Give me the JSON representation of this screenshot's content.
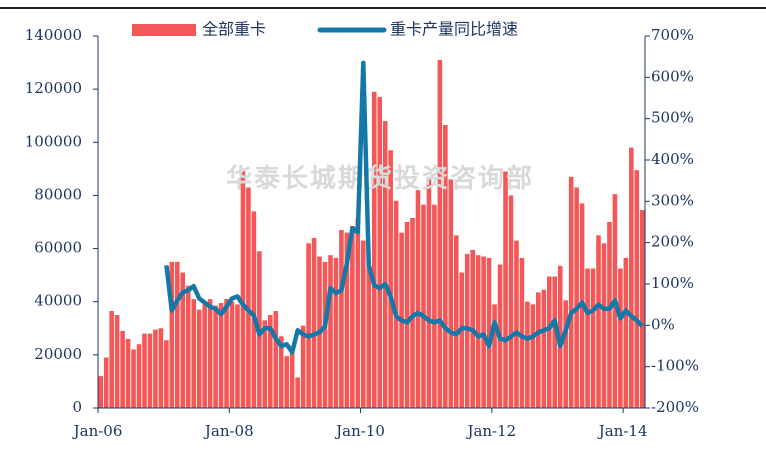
{
  "chart_data": {
    "type": "bar_line",
    "annotation": "华泰长城期货投资咨询部",
    "categories": [
      "Jan-06",
      null,
      null,
      null,
      null,
      null,
      null,
      null,
      null,
      null,
      null,
      null,
      null,
      null,
      null,
      null,
      null,
      null,
      null,
      null,
      null,
      null,
      null,
      null,
      "Jan-08",
      null,
      null,
      null,
      null,
      null,
      null,
      null,
      null,
      null,
      null,
      null,
      null,
      null,
      null,
      null,
      null,
      null,
      null,
      null,
      null,
      null,
      null,
      null,
      "Jan-10",
      null,
      null,
      null,
      null,
      null,
      null,
      null,
      null,
      null,
      null,
      null,
      null,
      null,
      null,
      null,
      null,
      null,
      null,
      null,
      null,
      null,
      null,
      null,
      "Jan-12",
      null,
      null,
      null,
      null,
      null,
      null,
      null,
      null,
      null,
      null,
      null,
      null,
      null,
      null,
      null,
      null,
      null,
      null,
      null,
      null,
      null,
      null,
      null,
      "Jan-14",
      null,
      null,
      null
    ],
    "series": [
      {
        "name": "全部重卡",
        "color": "#f45757",
        "axis": "y",
        "values": [
          12000,
          19000,
          36500,
          35000,
          29000,
          26000,
          22000,
          24000,
          28000,
          28000,
          29500,
          30000,
          25500,
          55000,
          55000,
          51000,
          46000,
          41000,
          37000,
          39000,
          41000,
          38500,
          39500,
          41000,
          40000,
          39000,
          90000,
          83000,
          74000,
          59000,
          33000,
          35000,
          36500,
          27000,
          19500,
          21000,
          11500,
          31000,
          62000,
          64000,
          57000,
          55000,
          57500,
          56500,
          67000,
          66000,
          68500,
          71500,
          63000,
          54000,
          119000,
          117000,
          108000,
          97000,
          78000,
          66000,
          70000,
          71500,
          82000,
          76500,
          86000,
          76500,
          131000,
          106500,
          86000,
          65000,
          51000,
          58000,
          59500,
          57500,
          57000,
          56500,
          39000,
          54000,
          89000,
          80000,
          63000,
          56500,
          40000,
          39000,
          43500,
          44500,
          49500,
          49500,
          53500,
          40500,
          87000,
          83000,
          77000,
          52500,
          52500,
          65000,
          62000,
          70000,
          80500,
          52500,
          56500,
          98000,
          89500,
          74500
        ]
      },
      {
        "name": "重卡产量同比增速",
        "color": "#1478a8",
        "axis": "y2",
        "values": [
          null,
          null,
          null,
          null,
          null,
          null,
          null,
          null,
          null,
          null,
          null,
          null,
          145,
          36,
          60,
          80,
          85,
          95,
          65,
          55,
          45,
          40,
          27,
          45,
          65,
          70,
          50,
          36,
          24,
          -22,
          -7,
          -7,
          -32,
          -50,
          -46,
          -65,
          -12,
          -22,
          -27,
          -22,
          -17,
          -2,
          90,
          78,
          85,
          150,
          235,
          225,
          635,
          145,
          97,
          90,
          100,
          70,
          22,
          12,
          7,
          22,
          30,
          22,
          12,
          7,
          12,
          -7,
          -17,
          -22,
          -7,
          -7,
          -12,
          -27,
          -22,
          -50,
          7,
          -32,
          -36,
          -27,
          -17,
          -27,
          -32,
          -27,
          -17,
          -12,
          -7,
          12,
          -50,
          -12,
          30,
          40,
          55,
          30,
          36,
          50,
          40,
          40,
          60,
          17,
          36,
          22,
          12,
          -2
        ]
      }
    ],
    "ylim": [
      0,
      140000
    ],
    "yticks": [
      0,
      20000,
      40000,
      60000,
      80000,
      100000,
      120000,
      140000
    ],
    "y2lim": [
      -200,
      700
    ],
    "y2ticks": [
      {
        "value": -200,
        "label": "-200%"
      },
      {
        "value": -100,
        "label": "-100%"
      },
      {
        "value": 0,
        "label": "0%"
      },
      {
        "value": 100,
        "label": "100%"
      },
      {
        "value": 200,
        "label": "200%"
      },
      {
        "value": 300,
        "label": "300%"
      },
      {
        "value": 400,
        "label": "400%"
      },
      {
        "value": 500,
        "label": "500%"
      },
      {
        "value": 600,
        "label": "600%"
      },
      {
        "value": 700,
        "label": "700%"
      }
    ],
    "legend": "top"
  }
}
